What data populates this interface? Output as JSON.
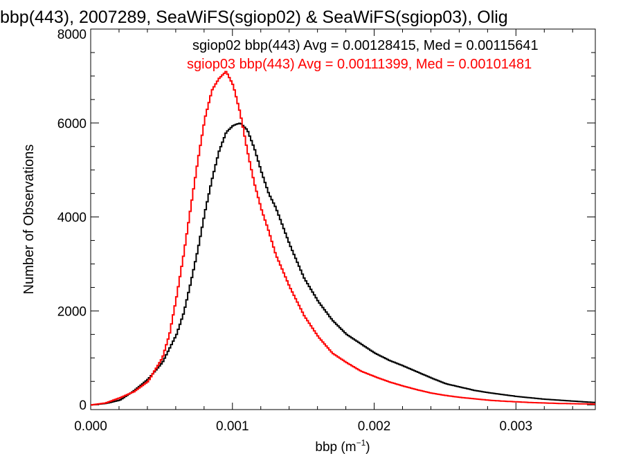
{
  "chart_data": {
    "type": "line",
    "title": "bbp(443), 2007289, SeaWiFS(sgiop02) & SeaWiFS(sgiop03), Olig",
    "xlabel": "bbp (m",
    "xlabel_sup": "−1",
    "xlabel_close": ")",
    "ylabel": "Number of Observations",
    "xlim": [
      0.0,
      0.00356
    ],
    "ylim": [
      -100,
      8000
    ],
    "x_ticks": [
      {
        "v": 0.0,
        "label": "0.000"
      },
      {
        "v": 0.001,
        "label": "0.001"
      },
      {
        "v": 0.002,
        "label": "0.002"
      },
      {
        "v": 0.003,
        "label": "0.003"
      }
    ],
    "y_ticks": [
      {
        "v": 0,
        "label": "0"
      },
      {
        "v": 2000,
        "label": "2000"
      },
      {
        "v": 4000,
        "label": "4000"
      },
      {
        "v": 6000,
        "label": "6000"
      },
      {
        "v": 8000,
        "label": "8000"
      }
    ],
    "grid": false,
    "series": [
      {
        "name": "sgiop02",
        "legend": "sgiop02 bbp(443) Avg = 0.00128415, Med = 0.00115641",
        "color": "#000000",
        "x": [
          0.0,
          0.0001,
          0.0002,
          0.0003,
          0.0004,
          0.0005,
          0.0006,
          0.00065,
          0.0007,
          0.00075,
          0.0008,
          0.00085,
          0.0009,
          0.00095,
          0.001,
          0.00105,
          0.0011,
          0.00115,
          0.0012,
          0.00125,
          0.0013,
          0.00135,
          0.0014,
          0.0015,
          0.0016,
          0.0017,
          0.0018,
          0.0019,
          0.002,
          0.0021,
          0.0022,
          0.0023,
          0.0024,
          0.0025,
          0.0026,
          0.0027,
          0.0028,
          0.0029,
          0.003,
          0.0031,
          0.0032,
          0.0033,
          0.0034,
          0.0035,
          0.00356
        ],
        "y": [
          0,
          30,
          100,
          300,
          550,
          900,
          1500,
          1950,
          2600,
          3300,
          4100,
          4800,
          5400,
          5800,
          5950,
          6000,
          5850,
          5450,
          4950,
          4500,
          4200,
          3800,
          3400,
          2700,
          2200,
          1800,
          1500,
          1300,
          1100,
          950,
          830,
          700,
          570,
          450,
          380,
          310,
          260,
          220,
          180,
          150,
          120,
          100,
          80,
          60,
          50
        ]
      },
      {
        "name": "sgiop03",
        "legend": "sgiop03 bbp(443) Avg = 0.00111399, Med = 0.00101481",
        "color": "#ff0000",
        "x": [
          0.0,
          0.0001,
          0.0002,
          0.0003,
          0.0004,
          0.0005,
          0.00055,
          0.0006,
          0.00065,
          0.0007,
          0.00075,
          0.0008,
          0.00085,
          0.0009,
          0.00095,
          0.001,
          0.00105,
          0.0011,
          0.00115,
          0.0012,
          0.00125,
          0.0013,
          0.00135,
          0.0014,
          0.0015,
          0.0016,
          0.0017,
          0.0018,
          0.0019,
          0.002,
          0.0021,
          0.0022,
          0.0023,
          0.0024,
          0.0025,
          0.0026,
          0.0027,
          0.0028,
          0.0029,
          0.003,
          0.0031,
          0.0032,
          0.0033,
          0.0034,
          0.0035,
          0.00356
        ],
        "y": [
          0,
          40,
          150,
          280,
          500,
          1000,
          1500,
          2300,
          3200,
          4200,
          5200,
          6100,
          6700,
          6950,
          7100,
          6800,
          6200,
          5400,
          4700,
          4150,
          3700,
          3200,
          2850,
          2500,
          1900,
          1450,
          1100,
          900,
          720,
          600,
          490,
          400,
          320,
          250,
          200,
          160,
          130,
          100,
          80,
          65,
          50,
          40,
          30,
          25,
          20,
          15
        ]
      }
    ]
  }
}
